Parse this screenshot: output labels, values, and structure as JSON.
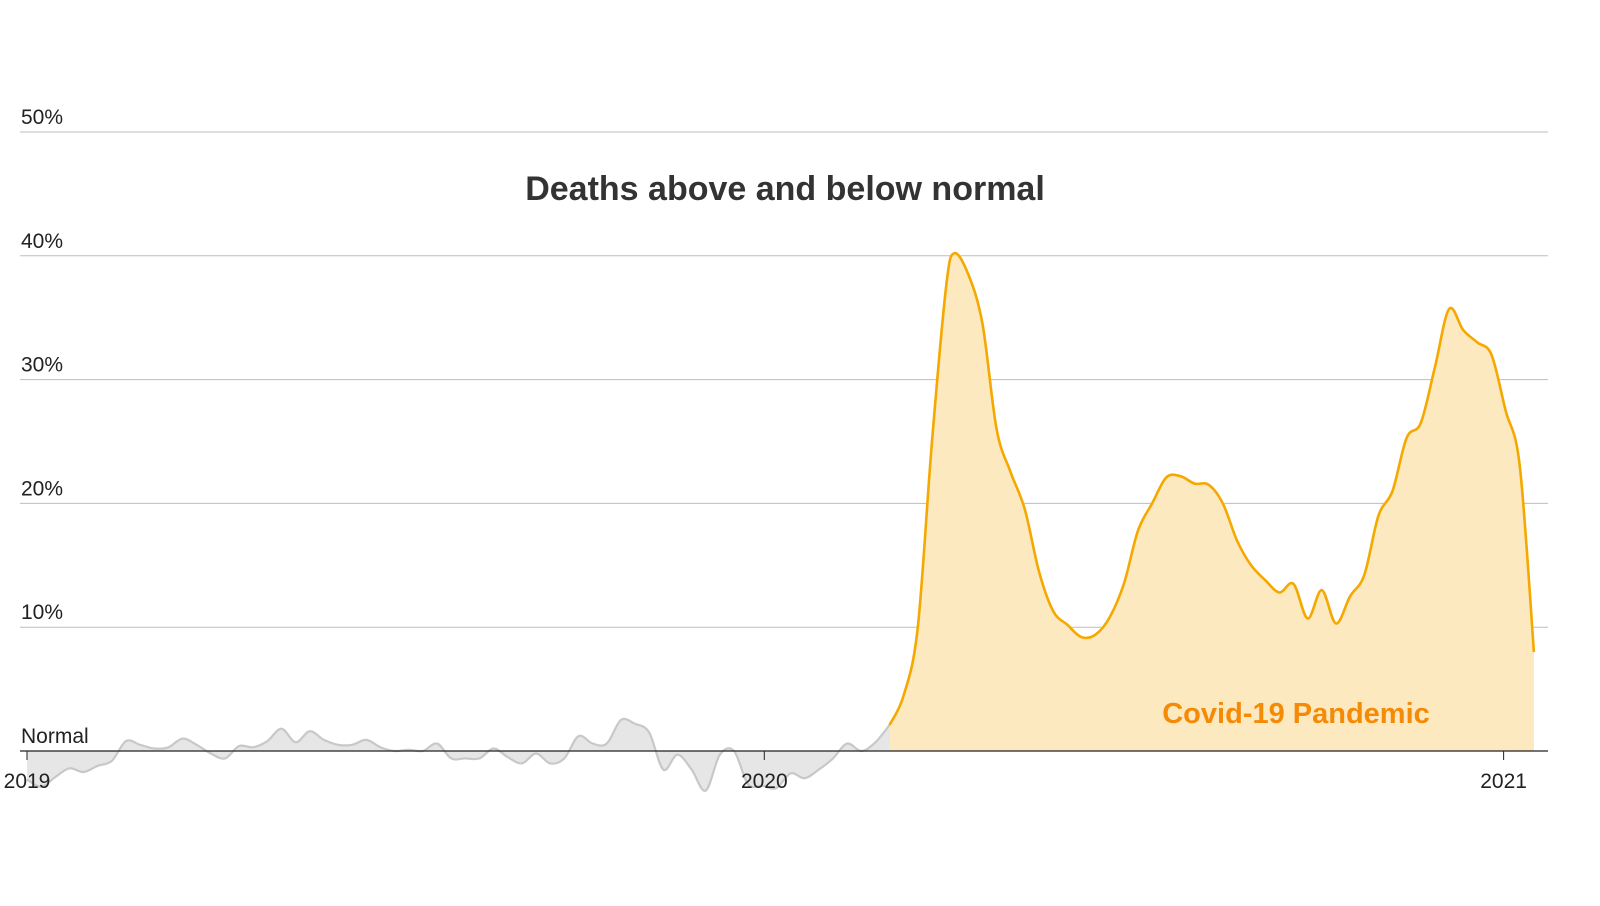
{
  "chart_data": {
    "type": "area",
    "title": "Deaths above and below normal",
    "annotation": "Covid-19 Pandemic",
    "baseline_label": "Normal",
    "y_unit": "%",
    "ylim": [
      -3.5,
      50
    ],
    "y_ticks": [
      10,
      20,
      30,
      40,
      50
    ],
    "y_tick_labels": [
      "10%",
      "20%",
      "30%",
      "40%",
      "50%"
    ],
    "x_ticks": [
      "2019-01-01",
      "2020-01-01",
      "2021-01-01"
    ],
    "x_tick_labels": [
      "2019",
      "2020",
      "2021"
    ],
    "xlim": [
      "2019-01-01",
      "2021-01-20"
    ],
    "grid": true,
    "colors": {
      "pre_pandemic_line": "#c8c8c8",
      "pre_pandemic_fill": "#e6e6e6",
      "pandemic_line": "#f5a800",
      "pandemic_fill": "#fde9bf",
      "gridline": "#bdbdbd",
      "axis": "#222222",
      "annotation": "#f58a07"
    },
    "series": [
      {
        "segment": "pre_pandemic",
        "points": [
          [
            "2019-01-01",
            -2.3
          ],
          [
            "2019-01-08",
            -2.9
          ],
          [
            "2019-01-15",
            -2.1
          ],
          [
            "2019-01-22",
            -1.4
          ],
          [
            "2019-01-29",
            -1.7
          ],
          [
            "2019-02-05",
            -1.2
          ],
          [
            "2019-02-12",
            -0.8
          ],
          [
            "2019-02-19",
            0.8
          ],
          [
            "2019-02-26",
            0.5
          ],
          [
            "2019-03-05",
            0.2
          ],
          [
            "2019-03-12",
            0.3
          ],
          [
            "2019-03-19",
            1.0
          ],
          [
            "2019-03-26",
            0.5
          ],
          [
            "2019-04-02",
            -0.2
          ],
          [
            "2019-04-09",
            -0.6
          ],
          [
            "2019-04-16",
            0.4
          ],
          [
            "2019-04-23",
            0.3
          ],
          [
            "2019-04-30",
            0.8
          ],
          [
            "2019-05-07",
            1.8
          ],
          [
            "2019-05-14",
            0.7
          ],
          [
            "2019-05-21",
            1.6
          ],
          [
            "2019-05-28",
            0.9
          ],
          [
            "2019-06-04",
            0.5
          ],
          [
            "2019-06-11",
            0.5
          ],
          [
            "2019-06-18",
            0.9
          ],
          [
            "2019-06-25",
            0.3
          ],
          [
            "2019-07-02",
            0.0
          ],
          [
            "2019-07-09",
            0.1
          ],
          [
            "2019-07-16",
            0.0
          ],
          [
            "2019-07-23",
            0.6
          ],
          [
            "2019-07-30",
            -0.6
          ],
          [
            "2019-08-06",
            -0.6
          ],
          [
            "2019-08-13",
            -0.6
          ],
          [
            "2019-08-20",
            0.2
          ],
          [
            "2019-08-27",
            -0.5
          ],
          [
            "2019-09-03",
            -1.0
          ],
          [
            "2019-09-10",
            -0.2
          ],
          [
            "2019-09-17",
            -1.0
          ],
          [
            "2019-09-24",
            -0.6
          ],
          [
            "2019-10-01",
            1.2
          ],
          [
            "2019-10-08",
            0.6
          ],
          [
            "2019-10-15",
            0.6
          ],
          [
            "2019-10-22",
            2.5
          ],
          [
            "2019-10-29",
            2.2
          ],
          [
            "2019-11-05",
            1.5
          ],
          [
            "2019-11-12",
            -1.5
          ],
          [
            "2019-11-19",
            -0.3
          ],
          [
            "2019-11-26",
            -1.5
          ],
          [
            "2019-12-03",
            -3.2
          ],
          [
            "2019-12-10",
            -0.3
          ],
          [
            "2019-12-17",
            0.0
          ],
          [
            "2019-12-24",
            -2.7
          ],
          [
            "2019-12-31",
            -2.8
          ],
          [
            "2020-01-07",
            -3.0
          ],
          [
            "2020-01-14",
            -1.8
          ],
          [
            "2020-01-21",
            -2.2
          ],
          [
            "2020-01-28",
            -1.5
          ],
          [
            "2020-02-04",
            -0.6
          ],
          [
            "2020-02-11",
            0.6
          ],
          [
            "2020-02-18",
            0.0
          ],
          [
            "2020-02-25",
            0.7
          ],
          [
            "2020-03-03",
            2.1
          ]
        ]
      },
      {
        "segment": "pandemic",
        "name": "Covid-19 Pandemic",
        "points": [
          [
            "2020-03-03",
            2.1
          ],
          [
            "2020-03-10",
            4.5
          ],
          [
            "2020-03-17",
            10.0
          ],
          [
            "2020-03-24",
            25.0
          ],
          [
            "2020-03-31",
            37.5
          ],
          [
            "2020-04-04",
            40.2
          ],
          [
            "2020-04-11",
            38.5
          ],
          [
            "2020-04-18",
            34.5
          ],
          [
            "2020-04-25",
            26.0
          ],
          [
            "2020-05-02",
            22.5
          ],
          [
            "2020-05-09",
            19.5
          ],
          [
            "2020-05-16",
            14.5
          ],
          [
            "2020-05-23",
            11.3
          ],
          [
            "2020-05-30",
            10.2
          ],
          [
            "2020-06-06",
            9.2
          ],
          [
            "2020-06-13",
            9.4
          ],
          [
            "2020-06-20",
            10.8
          ],
          [
            "2020-06-27",
            13.5
          ],
          [
            "2020-07-04",
            17.8
          ],
          [
            "2020-07-11",
            20.0
          ],
          [
            "2020-07-18",
            22.1
          ],
          [
            "2020-07-25",
            22.2
          ],
          [
            "2020-08-01",
            21.6
          ],
          [
            "2020-08-08",
            21.5
          ],
          [
            "2020-08-15",
            20.0
          ],
          [
            "2020-08-22",
            17.0
          ],
          [
            "2020-08-29",
            15.0
          ],
          [
            "2020-09-05",
            13.8
          ],
          [
            "2020-09-12",
            12.8
          ],
          [
            "2020-09-19",
            13.5
          ],
          [
            "2020-09-26",
            10.7
          ],
          [
            "2020-10-03",
            13.0
          ],
          [
            "2020-10-10",
            10.3
          ],
          [
            "2020-10-17",
            12.5
          ],
          [
            "2020-10-24",
            14.2
          ],
          [
            "2020-10-31",
            19.0
          ],
          [
            "2020-11-07",
            21.0
          ],
          [
            "2020-11-14",
            25.3
          ],
          [
            "2020-11-21",
            26.5
          ],
          [
            "2020-11-28",
            31.0
          ],
          [
            "2020-12-05",
            35.7
          ],
          [
            "2020-12-12",
            34.0
          ],
          [
            "2020-12-19",
            33.0
          ],
          [
            "2020-12-26",
            32.0
          ],
          [
            "2021-01-02",
            27.5
          ],
          [
            "2021-01-09",
            23.0
          ],
          [
            "2021-01-16",
            8.0
          ]
        ]
      }
    ]
  }
}
